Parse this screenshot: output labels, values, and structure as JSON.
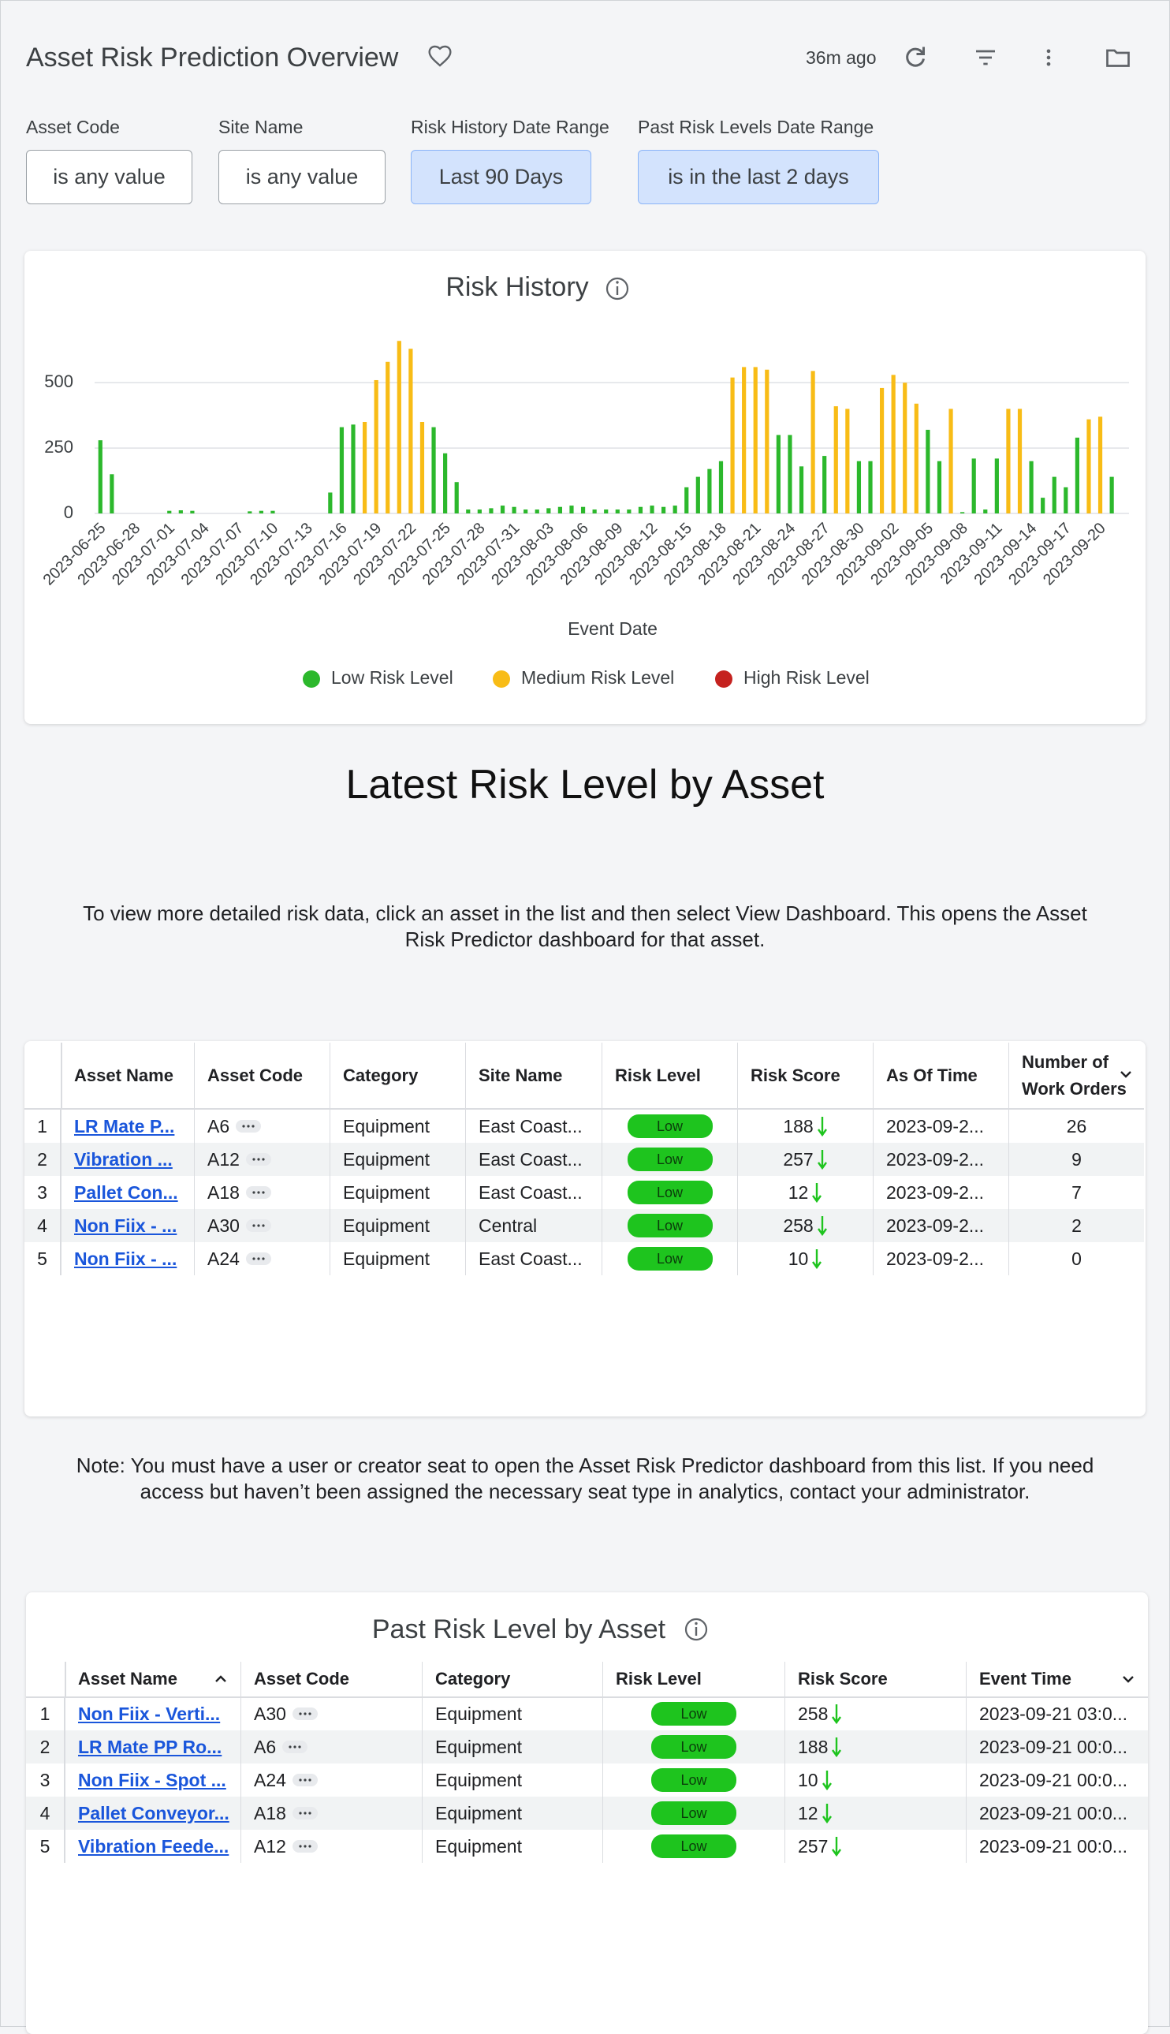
{
  "header": {
    "title": "Asset Risk Prediction Overview",
    "updated": "36m ago"
  },
  "filters": [
    {
      "label": "Asset Code",
      "value": "is any value"
    },
    {
      "label": "Site Name",
      "value": "is any value"
    },
    {
      "label": "Risk History Date Range",
      "value": "Last 90 Days"
    },
    {
      "label": "Past Risk Levels Date Range",
      "value": "is in the last 2 days"
    }
  ],
  "chart_data": {
    "type": "bar",
    "title": "Risk History",
    "xlabel": "Event Date",
    "categories": [
      "2023-06-25",
      null,
      null,
      "2023-06-28",
      null,
      null,
      "2023-07-01",
      null,
      null,
      "2023-07-04",
      null,
      null,
      "2023-07-07",
      null,
      null,
      "2023-07-10",
      null,
      null,
      "2023-07-13",
      null,
      null,
      "2023-07-16",
      null,
      null,
      "2023-07-19",
      null,
      null,
      "2023-07-22",
      null,
      null,
      "2023-07-25",
      null,
      null,
      "2023-07-28",
      null,
      null,
      "2023-07-31",
      null,
      null,
      "2023-08-03",
      null,
      null,
      "2023-08-06",
      null,
      null,
      "2023-08-09",
      null,
      null,
      "2023-08-12",
      null,
      null,
      "2023-08-15",
      null,
      null,
      "2023-08-18",
      null,
      null,
      "2023-08-21",
      null,
      null,
      "2023-08-24",
      null,
      null,
      "2023-08-27",
      null,
      null,
      "2023-08-30",
      null,
      null,
      "2023-09-02",
      null,
      null,
      "2023-09-05",
      null,
      null,
      "2023-09-08",
      null,
      null,
      "2023-09-11",
      null,
      null,
      "2023-09-14",
      null,
      null,
      "2023-09-17",
      null,
      null,
      "2023-09-20",
      null,
      null
    ],
    "series": [
      {
        "name": "Low Risk Level",
        "color": "#2cb82c",
        "values": [
          280,
          150,
          null,
          null,
          null,
          null,
          10,
          12,
          10,
          null,
          null,
          null,
          null,
          8,
          10,
          10,
          null,
          null,
          null,
          null,
          80,
          330,
          340,
          null,
          null,
          null,
          null,
          null,
          null,
          330,
          230,
          120,
          15,
          15,
          20,
          30,
          25,
          15,
          15,
          20,
          25,
          30,
          25,
          15,
          15,
          15,
          15,
          25,
          30,
          25,
          30,
          100,
          140,
          170,
          200,
          null,
          null,
          null,
          null,
          300,
          300,
          180,
          null,
          220,
          null,
          null,
          200,
          200,
          null,
          null,
          null,
          null,
          320,
          200,
          null,
          5,
          210,
          15,
          210,
          null,
          null,
          200,
          60,
          140,
          100,
          290,
          null,
          null,
          140,
          null
        ]
      },
      {
        "name": "Medium Risk Level",
        "color": "#f8bc16",
        "values": [
          null,
          null,
          null,
          null,
          null,
          null,
          null,
          null,
          null,
          null,
          null,
          null,
          null,
          null,
          null,
          null,
          null,
          null,
          null,
          null,
          null,
          null,
          null,
          350,
          510,
          580,
          660,
          630,
          350,
          null,
          null,
          null,
          null,
          null,
          null,
          null,
          null,
          null,
          null,
          null,
          null,
          null,
          null,
          null,
          null,
          null,
          null,
          null,
          null,
          null,
          null,
          null,
          null,
          null,
          null,
          520,
          560,
          560,
          550,
          null,
          null,
          null,
          545,
          null,
          410,
          400,
          null,
          null,
          480,
          530,
          500,
          420,
          null,
          null,
          400,
          null,
          null,
          null,
          null,
          400,
          400,
          null,
          null,
          null,
          null,
          null,
          360,
          370,
          null,
          null
        ]
      },
      {
        "name": "High Risk Level",
        "color": "#c5221f",
        "values": [
          null,
          null,
          null,
          null,
          null,
          null,
          null,
          null,
          null,
          null,
          null,
          null,
          null,
          null,
          null,
          null,
          null,
          null,
          null,
          null,
          null,
          null,
          null,
          null,
          null,
          null,
          null,
          null,
          null,
          null,
          null,
          null,
          null,
          null,
          null,
          null,
          null,
          null,
          null,
          null,
          null,
          null,
          null,
          null,
          null,
          null,
          null,
          null,
          null,
          null,
          null,
          null,
          null,
          null,
          null,
          null,
          null,
          null,
          null,
          null,
          null,
          null,
          null,
          null,
          null,
          null,
          null,
          null,
          null,
          null,
          null,
          null,
          null,
          null,
          null,
          null,
          null,
          null,
          null,
          null,
          null,
          null,
          null,
          null,
          null,
          null,
          null,
          null,
          null,
          null
        ]
      }
    ],
    "ylim": [
      0,
      700
    ],
    "yticks": [
      0,
      250,
      500
    ],
    "grid": true,
    "legend": "bottom"
  },
  "latest": {
    "title": "Latest Risk Level by Asset",
    "description": "To view more detailed risk data, click an asset in the list and then select View Dashboard. This opens the Asset Risk Predictor dashboard for that asset.",
    "table": {
      "columns": [
        "Asset Name",
        "Asset Code",
        "Category",
        "Site Name",
        "Risk Level",
        "Risk Score",
        "As Of Time",
        "Number of Work Orders"
      ],
      "rows": [
        [
          1,
          "LR Mate P...",
          "A6",
          "Equipment",
          "East Coast...",
          "Low",
          188,
          "2023-09-2...",
          26
        ],
        [
          2,
          "Vibration ...",
          "A12",
          "Equipment",
          "East Coast...",
          "Low",
          257,
          "2023-09-2...",
          9
        ],
        [
          3,
          "Pallet Con...",
          "A18",
          "Equipment",
          "East Coast...",
          "Low",
          12,
          "2023-09-2...",
          7
        ],
        [
          4,
          "Non Fiix - ...",
          "A30",
          "Equipment",
          "Central",
          "Low",
          258,
          "2023-09-2...",
          2
        ],
        [
          5,
          "Non Fiix - ...",
          "A24",
          "Equipment",
          "East Coast...",
          "Low",
          10,
          "2023-09-2...",
          0
        ]
      ]
    }
  },
  "note": "Note: You must have a user or creator seat to open the Asset Risk Predictor dashboard from this list. If you need access but haven’t been assigned the necessary seat type in analytics, contact your administrator.",
  "past": {
    "title": "Past Risk Level by Asset",
    "table": {
      "columns": [
        "Asset Name",
        "Asset Code",
        "Category",
        "Risk Level",
        "Risk Score",
        "Event Time"
      ],
      "rows": [
        [
          1,
          "Non Fiix - Verti...",
          "A30",
          "Equipment",
          "Low",
          258,
          "2023-09-21 03:0..."
        ],
        [
          2,
          "LR Mate PP Ro...",
          "A6",
          "Equipment",
          "Low",
          188,
          "2023-09-21 00:0..."
        ],
        [
          3,
          "Non Fiix - Spot ...",
          "A24",
          "Equipment",
          "Low",
          10,
          "2023-09-21 00:0..."
        ],
        [
          4,
          "Pallet Conveyor...",
          "A18",
          "Equipment",
          "Low",
          12,
          "2023-09-21 00:0..."
        ],
        [
          5,
          "Vibration Feede...",
          "A12",
          "Equipment",
          "Low",
          257,
          "2023-09-21 00:0..."
        ]
      ]
    }
  }
}
